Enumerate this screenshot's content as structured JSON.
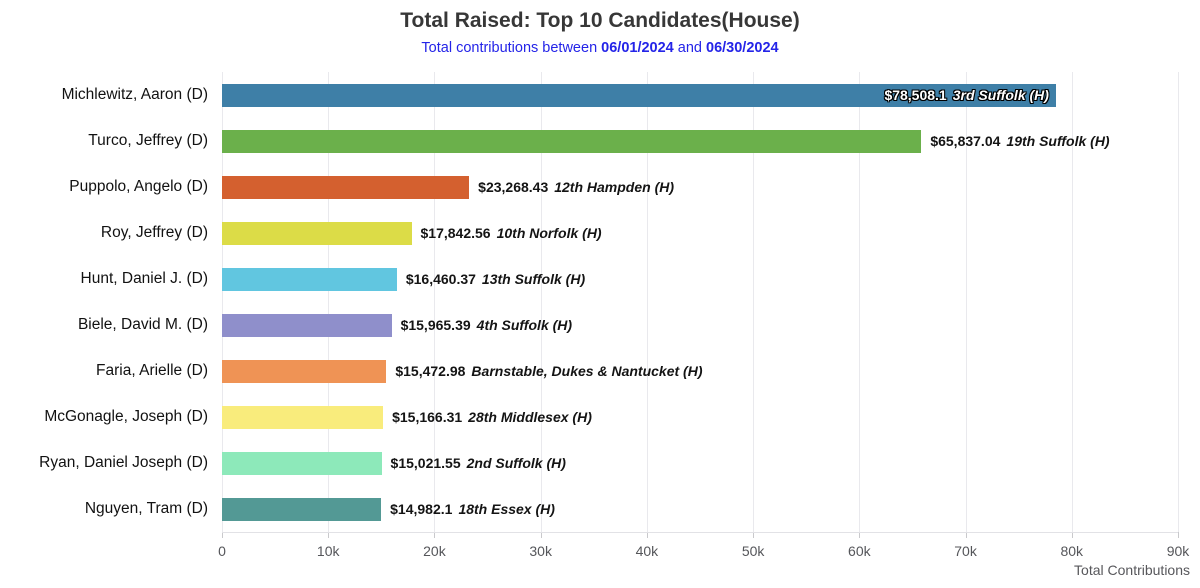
{
  "title": "Total Raised: Top 10 Candidates(House)",
  "subtitle": {
    "prefix": "Total contributions between",
    "start_date": "06/01/2024",
    "conjunction": "and",
    "end_date": "06/30/2024",
    "color": "#2424e8"
  },
  "chart_data": {
    "type": "bar",
    "orientation": "horizontal",
    "title": "Total Raised: Top 10 Candidates(House)",
    "xlabel": "Total Contributions",
    "ylabel": "",
    "xlim": [
      0,
      90000
    ],
    "x_tick_labels": [
      "0",
      "10k",
      "20k",
      "30k",
      "40k",
      "50k",
      "60k",
      "70k",
      "80k",
      "90k"
    ],
    "grid": true,
    "legend": false,
    "categories": [
      "Michlewitz, Aaron (D)",
      "Turco, Jeffrey (D)",
      "Puppolo, Angelo (D)",
      "Roy, Jeffrey (D)",
      "Hunt, Daniel J. (D)",
      "Biele, David M. (D)",
      "Faria, Arielle (D)",
      "McGonagle, Joseph (D)",
      "Ryan, Daniel Joseph (D)",
      "Nguyen, Tram (D)"
    ],
    "values": [
      78508.1,
      65837.04,
      23268.43,
      17842.56,
      16460.37,
      15965.39,
      15472.98,
      15166.31,
      15021.55,
      14982.1
    ],
    "amount_labels": [
      "$78,508.1",
      "$65,837.04",
      "$23,268.43",
      "$17,842.56",
      "$16,460.37",
      "$15,965.39",
      "$15,472.98",
      "$15,166.31",
      "$15,021.55",
      "$14,982.1"
    ],
    "district_labels": [
      "3rd Suffolk (H)",
      "19th Suffolk (H)",
      "12th Hampden (H)",
      "10th Norfolk (H)",
      "13th Suffolk (H)",
      "4th Suffolk (H)",
      "Barnstable, Dukes & Nantucket (H)",
      "28th Middlesex (H)",
      "2nd Suffolk (H)",
      "18th Essex (H)"
    ],
    "bar_colors": [
      "#3e7fa7",
      "#6bb04b",
      "#d4602f",
      "#dcdc47",
      "#61c6e0",
      "#8f8fcb",
      "#ef9355",
      "#f9ec7c",
      "#8de9ba",
      "#539995"
    ],
    "value_label_inside": [
      true,
      false,
      false,
      false,
      false,
      false,
      false,
      false,
      false,
      false
    ],
    "gridline_color": "#e9e9ed",
    "tick_color": "#c9c9cc"
  }
}
